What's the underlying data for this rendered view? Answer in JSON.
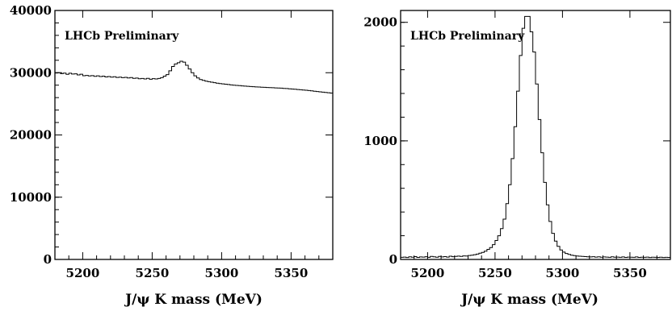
{
  "chart_data": [
    {
      "type": "histogram",
      "annotation": "LHCb Preliminary",
      "xlabel": "J/ψ K mass (MeV)",
      "ylabel": "",
      "xlim": [
        5180,
        5380
      ],
      "ylim": [
        0,
        40000
      ],
      "xticks": [
        5200,
        5250,
        5300,
        5350
      ],
      "yticks": [
        0,
        10000,
        20000,
        30000,
        40000
      ],
      "grid": false,
      "bin_width": 2,
      "values": [
        29960,
        29990,
        29850,
        29930,
        29730,
        29920,
        29790,
        29820,
        29640,
        29760,
        29520,
        29560,
        29480,
        29530,
        29420,
        29500,
        29380,
        29450,
        29320,
        29380,
        29280,
        29340,
        29240,
        29300,
        29200,
        29260,
        29160,
        29220,
        29100,
        29140,
        29040,
        29080,
        29000,
        29100,
        28950,
        29050,
        29000,
        29080,
        29200,
        29450,
        29700,
        30300,
        31000,
        31400,
        31600,
        31850,
        31700,
        31200,
        30600,
        30000,
        29500,
        29150,
        28900,
        28780,
        28650,
        28560,
        28480,
        28400,
        28330,
        28260,
        28210,
        28150,
        28100,
        28040,
        27990,
        27960,
        27920,
        27880,
        27850,
        27820,
        27780,
        27750,
        27720,
        27700,
        27680,
        27650,
        27620,
        27600,
        27580,
        27560,
        27540,
        27520,
        27480,
        27450,
        27420,
        27380,
        27340,
        27300,
        27260,
        27220,
        27180,
        27130,
        27080,
        27030,
        26980,
        26930,
        26880,
        26830,
        26780,
        26730
      ]
    },
    {
      "type": "histogram",
      "annotation": "LHCb Preliminary",
      "xlabel": "J/ψ K mass (MeV)",
      "ylabel": "",
      "xlim": [
        5180,
        5380
      ],
      "ylim": [
        0,
        2100
      ],
      "xticks": [
        5200,
        5250,
        5300,
        5350
      ],
      "yticks": [
        0,
        1000,
        2000
      ],
      "grid": false,
      "bin_width": 2,
      "values": [
        18,
        20,
        16,
        22,
        19,
        24,
        17,
        21,
        20,
        23,
        18,
        25,
        22,
        19,
        26,
        21,
        24,
        20,
        27,
        23,
        25,
        28,
        26,
        30,
        29,
        33,
        36,
        40,
        45,
        52,
        60,
        70,
        85,
        100,
        125,
        160,
        200,
        260,
        340,
        470,
        630,
        850,
        1120,
        1420,
        1720,
        1950,
        2050,
        2050,
        1920,
        1750,
        1480,
        1180,
        900,
        650,
        460,
        320,
        220,
        155,
        110,
        80,
        62,
        50,
        42,
        36,
        32,
        29,
        27,
        25,
        24,
        22,
        21,
        23,
        20,
        22,
        19,
        21,
        20,
        18,
        22,
        19,
        20,
        18,
        21,
        17,
        20,
        19,
        18,
        21,
        17,
        19,
        18,
        20,
        16,
        19,
        18,
        17,
        19,
        16,
        18,
        17
      ]
    }
  ]
}
